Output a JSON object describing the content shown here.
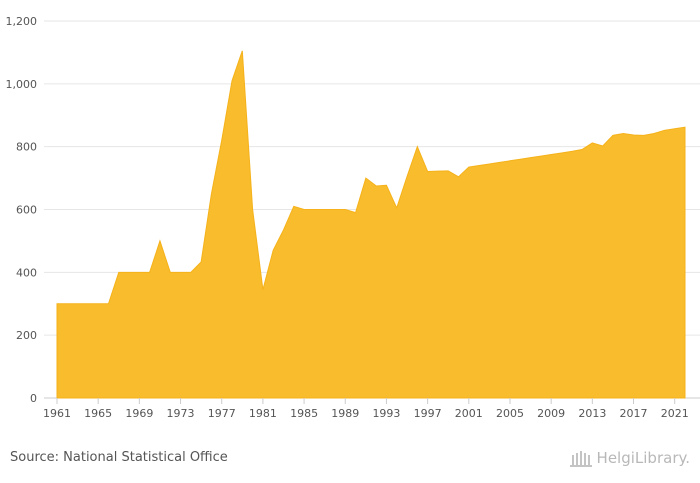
{
  "chart_data": {
    "type": "area",
    "title": "",
    "xlabel": "",
    "ylabel": "",
    "ylim": [
      0,
      1200
    ],
    "y_ticks": [
      0,
      200,
      400,
      600,
      800,
      1000,
      1200
    ],
    "y_tick_labels": [
      "0",
      "200",
      "400",
      "600",
      "800",
      "1,000",
      "1,200"
    ],
    "x_tick_labels": [
      "1961",
      "1965",
      "1969",
      "1973",
      "1977",
      "1981",
      "1985",
      "1989",
      "1993",
      "1997",
      "2001",
      "2005",
      "2009",
      "2013",
      "2017",
      "2021"
    ],
    "color": "#f9bc2c",
    "grid": "horizontal",
    "x": [
      1961,
      1962,
      1963,
      1964,
      1965,
      1966,
      1967,
      1968,
      1969,
      1970,
      1971,
      1972,
      1973,
      1974,
      1975,
      1976,
      1977,
      1978,
      1979,
      1980,
      1981,
      1982,
      1983,
      1984,
      1985,
      1986,
      1987,
      1988,
      1989,
      1990,
      1991,
      1992,
      1993,
      1994,
      1995,
      1996,
      1997,
      1998,
      1999,
      2000,
      2001,
      2002,
      2003,
      2004,
      2005,
      2006,
      2007,
      2008,
      2009,
      2010,
      2011,
      2012,
      2013,
      2014,
      2015,
      2016,
      2017,
      2018,
      2019,
      2020,
      2021,
      2022
    ],
    "values": [
      300,
      300,
      300,
      300,
      300,
      300,
      400,
      400,
      400,
      400,
      500,
      400,
      400,
      400,
      433,
      650,
      820,
      1010,
      1105,
      600,
      345,
      470,
      535,
      610,
      600,
      600,
      600,
      600,
      600,
      590,
      700,
      675,
      677,
      605,
      705,
      800,
      721,
      722,
      723,
      704,
      735,
      740,
      745,
      750,
      755,
      760,
      765,
      770,
      775,
      780,
      785,
      791,
      812,
      802,
      836,
      842,
      837,
      836,
      842,
      852,
      857,
      862
    ]
  },
  "footer": {
    "source": "Source: National Statistical Office",
    "brand": "HelgiLibrary."
  }
}
